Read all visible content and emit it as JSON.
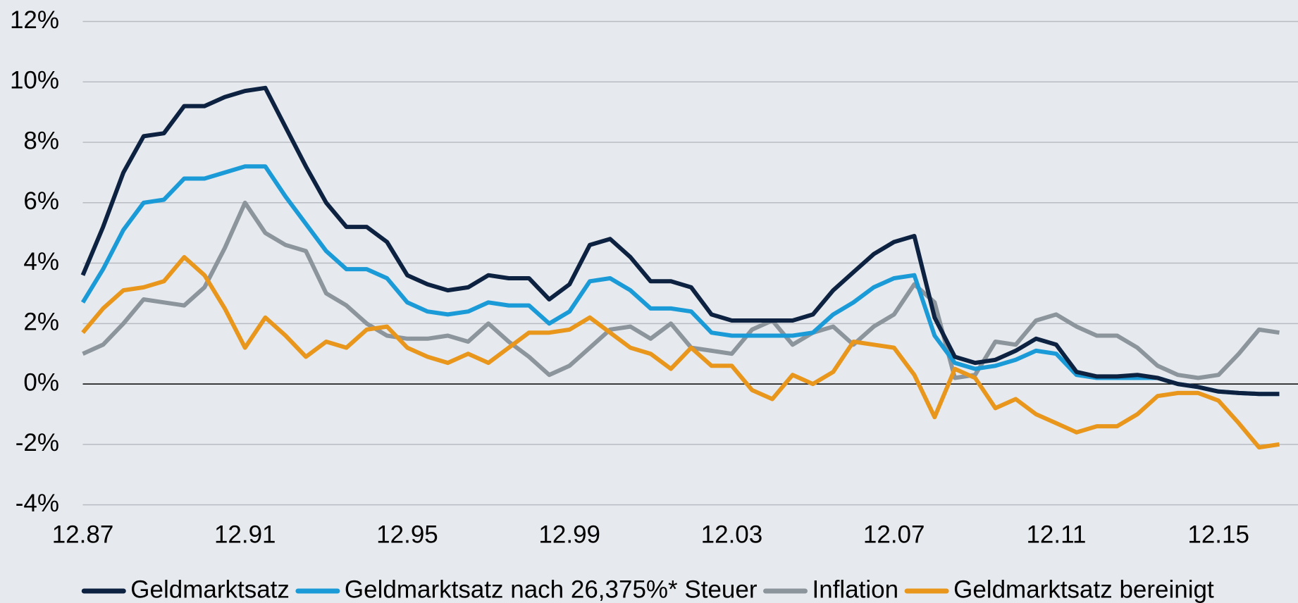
{
  "chart_data": {
    "type": "line",
    "categories": [
      "12.87",
      null,
      null,
      null,
      null,
      null,
      null,
      null,
      "12.91",
      null,
      null,
      null,
      null,
      null,
      null,
      null,
      "12.95",
      null,
      null,
      null,
      null,
      null,
      null,
      null,
      "12.99",
      null,
      null,
      null,
      null,
      null,
      null,
      null,
      "12.03",
      null,
      null,
      null,
      null,
      null,
      null,
      null,
      "12.07",
      null,
      null,
      null,
      null,
      null,
      null,
      null,
      "12.11",
      null,
      null,
      null,
      null,
      null,
      null,
      null,
      "12.15",
      null,
      null,
      null
    ],
    "series": [
      {
        "name": "Geldmarktsatz",
        "color": "#0d2240",
        "values": [
          3.6,
          5.2,
          7.0,
          8.2,
          8.3,
          9.2,
          9.2,
          9.5,
          9.7,
          9.8,
          8.5,
          7.2,
          6.0,
          5.2,
          5.2,
          4.7,
          3.6,
          3.3,
          3.1,
          3.2,
          3.6,
          3.5,
          3.5,
          2.8,
          3.3,
          4.6,
          4.8,
          4.2,
          3.4,
          3.4,
          3.2,
          2.3,
          2.1,
          2.1,
          2.1,
          2.1,
          2.3,
          3.1,
          3.7,
          4.3,
          4.7,
          4.9,
          2.2,
          0.9,
          0.7,
          0.8,
          1.1,
          1.5,
          1.3,
          0.4,
          0.25,
          0.25,
          0.3,
          0.2,
          0.0,
          -0.1,
          -0.25,
          -0.3,
          -0.33,
          -0.33
        ]
      },
      {
        "name": "Geldmarktsatz nach 26,375%* Steuer",
        "color": "#1a9bd7",
        "values": [
          2.7,
          3.8,
          5.1,
          6.0,
          6.1,
          6.8,
          6.8,
          7.0,
          7.2,
          7.2,
          6.2,
          5.3,
          4.4,
          3.8,
          3.8,
          3.5,
          2.7,
          2.4,
          2.3,
          2.4,
          2.7,
          2.6,
          2.6,
          2.0,
          2.4,
          3.4,
          3.5,
          3.1,
          2.5,
          2.5,
          2.4,
          1.7,
          1.6,
          1.6,
          1.6,
          1.6,
          1.7,
          2.3,
          2.7,
          3.2,
          3.5,
          3.6,
          1.6,
          0.7,
          0.5,
          0.6,
          0.8,
          1.1,
          1.0,
          0.3,
          0.2,
          0.2,
          0.2,
          0.2,
          0.0,
          -0.1,
          -0.25,
          -0.3,
          -0.33,
          -0.33
        ]
      },
      {
        "name": "Inflation",
        "color": "#8c959c",
        "values": [
          1.0,
          1.3,
          2.0,
          2.8,
          2.7,
          2.6,
          3.2,
          4.5,
          6.0,
          5.0,
          4.6,
          4.4,
          3.0,
          2.6,
          2.0,
          1.6,
          1.5,
          1.5,
          1.6,
          1.4,
          2.0,
          1.4,
          0.9,
          0.3,
          0.6,
          1.2,
          1.8,
          1.9,
          1.5,
          2.0,
          1.2,
          1.1,
          1.0,
          1.8,
          2.1,
          1.3,
          1.7,
          1.9,
          1.3,
          1.9,
          2.3,
          3.3,
          2.7,
          0.2,
          0.3,
          1.4,
          1.3,
          2.1,
          2.3,
          1.9,
          1.6,
          1.6,
          1.2,
          0.6,
          0.3,
          0.2,
          0.3,
          1.0,
          1.8,
          1.7
        ]
      },
      {
        "name": "Geldmarktsatz bereinigt",
        "color": "#e8971c",
        "values": [
          1.7,
          2.5,
          3.1,
          3.2,
          3.4,
          4.2,
          3.6,
          2.5,
          1.2,
          2.2,
          1.6,
          0.9,
          1.4,
          1.2,
          1.8,
          1.9,
          1.2,
          0.9,
          0.7,
          1.0,
          0.7,
          1.2,
          1.7,
          1.7,
          1.8,
          2.2,
          1.7,
          1.2,
          1.0,
          0.5,
          1.2,
          0.6,
          0.6,
          -0.2,
          -0.5,
          0.3,
          0.0,
          0.4,
          1.4,
          1.3,
          1.2,
          0.3,
          -1.1,
          0.5,
          0.2,
          -0.8,
          -0.5,
          -1.0,
          -1.3,
          -1.6,
          -1.4,
          -1.4,
          -1.0,
          -0.4,
          -0.3,
          -0.3,
          -0.55,
          -1.3,
          -2.1,
          -2.0
        ]
      }
    ],
    "ylim": [
      -4,
      12
    ],
    "yticks": [
      {
        "value": -4,
        "label": "-4%"
      },
      {
        "value": -2,
        "label": "-2%"
      },
      {
        "value": 0,
        "label": "0%"
      },
      {
        "value": 2,
        "label": "2%"
      },
      {
        "value": 4,
        "label": "4%"
      },
      {
        "value": 6,
        "label": "6%"
      },
      {
        "value": 8,
        "label": "8%"
      },
      {
        "value": 10,
        "label": "10%"
      },
      {
        "value": 12,
        "label": "12%"
      }
    ],
    "grid": true,
    "legend": "bottom"
  }
}
